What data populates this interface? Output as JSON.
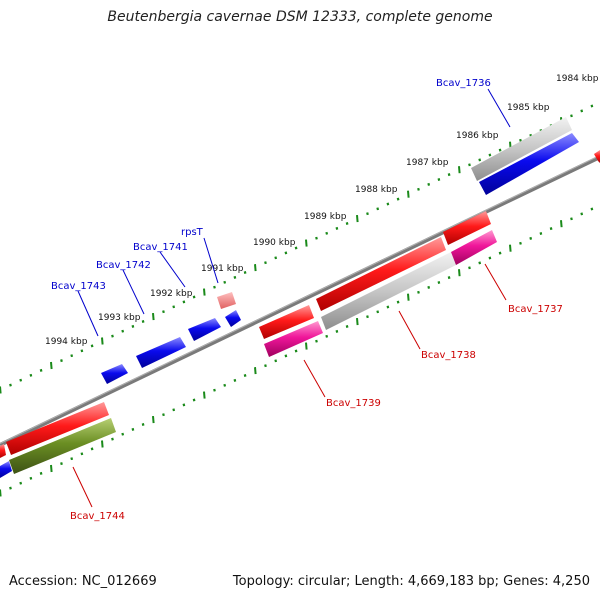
{
  "title": "Beutenbergia cavernae DSM 12333, complete genome",
  "footer": {
    "accession": "Accession: NC_012669",
    "summary": "Topology: circular; Length: 4,669,183 bp; Genes: 4,250"
  },
  "colors": {
    "forward_gene": "#0000ee",
    "reverse_gene": "#ee0000",
    "pseudo_gene": "#ff4444",
    "rna_gene": "#ff1493",
    "hypothetical_gene": "#bbbbbb",
    "other_gene": "#6b8e23",
    "backbone": "#808080",
    "tick": "#1a8a1a",
    "forward_label": "#0000cc",
    "reverse_label": "#cc0000"
  },
  "scale_labels": [
    "1984 kbp",
    "1985 kbp",
    "1986 kbp",
    "1987 kbp",
    "1988 kbp",
    "1989 kbp",
    "1990 kbp",
    "1991 kbp",
    "1992 kbp",
    "1993 kbp",
    "1994 kbp"
  ],
  "forward_genes": [
    {
      "label": "Bcav_1736"
    },
    {
      "label": "rpsT"
    },
    {
      "label": "Bcav_1741"
    },
    {
      "label": "Bcav_1742"
    },
    {
      "label": "Bcav_1743"
    }
  ],
  "reverse_genes": [
    {
      "label": "Bcav_1737"
    },
    {
      "label": "Bcav_1738"
    },
    {
      "label": "Bcav_1739"
    },
    {
      "label": "Bcav_1744"
    }
  ]
}
